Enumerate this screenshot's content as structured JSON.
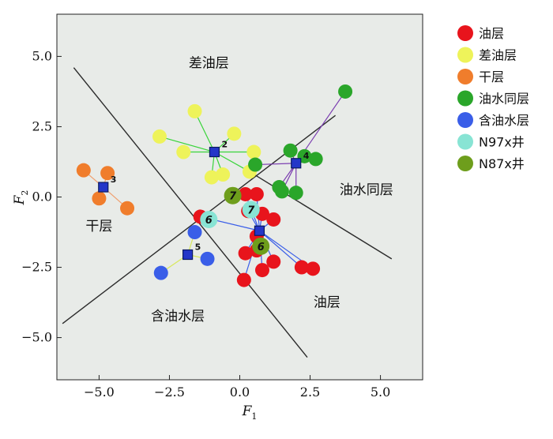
{
  "chart_data": {
    "type": "scatter",
    "xlabel": "F",
    "xlabel_sub": "1",
    "ylabel": "F",
    "ylabel_sub": "2",
    "xlim": [
      -6.5,
      6.5
    ],
    "ylim": [
      -6.5,
      6.5
    ],
    "xticks": [
      -5.0,
      -2.5,
      0.0,
      2.5,
      5.0
    ],
    "yticks": [
      -5.0,
      -2.5,
      0.0,
      2.5,
      5.0
    ],
    "xtick_labels": [
      "−5.0",
      "−2.5",
      "0.0",
      "2.5",
      "5.0"
    ],
    "ytick_labels": [
      "−5.0",
      "−2.5",
      "0.0",
      "2.5",
      "5.0"
    ],
    "grid": false,
    "legend_position": "right",
    "legend": [
      {
        "label": "油层",
        "color": "#e8141c"
      },
      {
        "label": "差油层",
        "color": "#eef35a"
      },
      {
        "label": "干层",
        "color": "#f07d2c"
      },
      {
        "label": "油水同层",
        "color": "#2aa62a"
      },
      {
        "label": "含油水层",
        "color": "#3a5ee8"
      },
      {
        "label": "N97x井",
        "color": "#88e4d4"
      },
      {
        "label": "N87x井",
        "color": "#6e9e1c"
      }
    ],
    "region_labels": [
      {
        "text": "差油层",
        "x": -1.1,
        "y": 4.6
      },
      {
        "text": "干层",
        "x": -5.0,
        "y": -1.2
      },
      {
        "text": "油水同层",
        "x": 4.5,
        "y": 0.1
      },
      {
        "text": "油层",
        "x": 3.1,
        "y": -3.9
      },
      {
        "text": "含油水层",
        "x": -2.2,
        "y": -4.4
      }
    ],
    "boundaries": [
      [
        [
          -5.9,
          4.6
        ],
        [
          2.4,
          -5.7
        ]
      ],
      [
        [
          -6.3,
          -4.5
        ],
        [
          3.4,
          2.9
        ]
      ],
      [
        [
          0.35,
          0.9
        ],
        [
          5.4,
          -2.2
        ]
      ]
    ],
    "series": [
      {
        "name": "油层",
        "color": "#e8141c",
        "centroid": {
          "x": 0.7,
          "y": -1.2,
          "label": ""
        },
        "points": [
          [
            0.2,
            0.1
          ],
          [
            0.6,
            0.1
          ],
          [
            0.3,
            -0.5
          ],
          [
            1.2,
            -0.8
          ],
          [
            0.8,
            -0.6
          ],
          [
            0.6,
            -1.4
          ],
          [
            0.2,
            -2.0
          ],
          [
            0.6,
            -1.9
          ],
          [
            1.2,
            -2.3
          ],
          [
            0.8,
            -2.6
          ],
          [
            0.15,
            -2.95
          ],
          [
            2.2,
            -2.5
          ],
          [
            2.6,
            -2.55
          ],
          [
            -1.4,
            -0.7
          ]
        ]
      },
      {
        "name": "差油层",
        "color": "#eef35a",
        "centroid": {
          "x": -0.9,
          "y": 1.6,
          "label": "2"
        },
        "points": [
          [
            -1.6,
            3.05
          ],
          [
            -2.85,
            2.15
          ],
          [
            -2.0,
            1.6
          ],
          [
            -1.0,
            0.7
          ],
          [
            -0.6,
            0.8
          ],
          [
            -0.2,
            2.25
          ],
          [
            0.5,
            1.6
          ],
          [
            0.35,
            0.9
          ]
        ]
      },
      {
        "name": "干层",
        "color": "#f07d2c",
        "centroid": {
          "x": -4.85,
          "y": 0.35,
          "label": "3"
        },
        "points": [
          [
            -5.55,
            0.95
          ],
          [
            -4.7,
            0.85
          ],
          [
            -5.0,
            -0.05
          ],
          [
            -4.0,
            -0.4
          ]
        ]
      },
      {
        "name": "油水同层",
        "color": "#2aa62a",
        "centroid": {
          "x": 2.0,
          "y": 1.2,
          "label": "4"
        },
        "points": [
          [
            3.75,
            3.75
          ],
          [
            1.8,
            1.65
          ],
          [
            2.3,
            1.45
          ],
          [
            2.7,
            1.35
          ],
          [
            0.55,
            1.15
          ],
          [
            1.4,
            0.35
          ],
          [
            1.5,
            0.2
          ],
          [
            2.0,
            0.15
          ]
        ]
      },
      {
        "name": "含油水层",
        "color": "#3a5ee8",
        "centroid": {
          "x": -1.85,
          "y": -2.05,
          "label": "5"
        },
        "points": [
          [
            -2.8,
            -2.7
          ],
          [
            -1.6,
            -1.25
          ],
          [
            -1.15,
            -2.2
          ]
        ]
      },
      {
        "name": "N97x井",
        "color": "#88e4d4",
        "well_label": "7",
        "points": [
          [
            -1.1,
            -0.8
          ],
          [
            0.4,
            -0.45
          ]
        ],
        "point_labels": [
          "6",
          "7"
        ]
      },
      {
        "name": "N87x井",
        "color": "#6e9e1c",
        "points": [
          [
            -0.25,
            0.05
          ],
          [
            0.75,
            -1.75
          ]
        ],
        "point_labels": [
          "7",
          "6"
        ]
      }
    ]
  }
}
